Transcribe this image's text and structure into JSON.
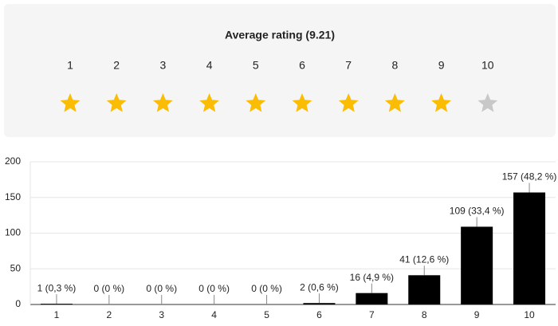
{
  "rating": {
    "title": "Average rating (9.21)",
    "stars": [
      {
        "label": "1",
        "filled": true
      },
      {
        "label": "2",
        "filled": true
      },
      {
        "label": "3",
        "filled": true
      },
      {
        "label": "4",
        "filled": true
      },
      {
        "label": "5",
        "filled": true
      },
      {
        "label": "6",
        "filled": true
      },
      {
        "label": "7",
        "filled": true
      },
      {
        "label": "8",
        "filled": true
      },
      {
        "label": "9",
        "filled": true
      },
      {
        "label": "10",
        "filled": false
      }
    ],
    "filled_color": "#fbbc04",
    "empty_color": "#c8c8c8"
  },
  "chart_data": {
    "type": "bar",
    "categories": [
      "1",
      "2",
      "3",
      "4",
      "5",
      "6",
      "7",
      "8",
      "9",
      "10"
    ],
    "values": [
      1,
      0,
      0,
      0,
      0,
      2,
      16,
      41,
      109,
      157
    ],
    "value_labels": [
      "1 (0,3 %)",
      "0 (0 %)",
      "0 (0 %)",
      "0 (0 %)",
      "0 (0 %)",
      "2 (0,6 %)",
      "16 (4,9 %)",
      "41 (12,6 %)",
      "109 (33,4 %)",
      "157 (48,2 %)"
    ],
    "color": "#000000",
    "ylim": [
      0,
      200
    ],
    "yticks": [
      0,
      50,
      100,
      150,
      200
    ],
    "grid": true
  }
}
